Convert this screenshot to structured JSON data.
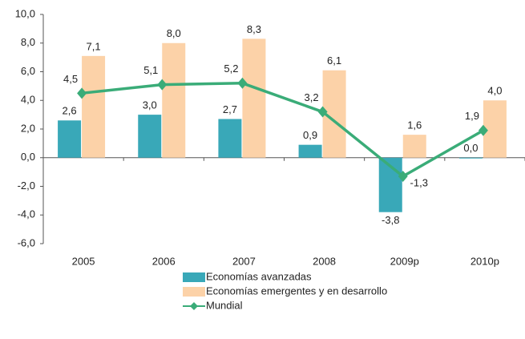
{
  "chart_data": {
    "type": "bar",
    "categories": [
      "2005",
      "2006",
      "2007",
      "2008",
      "2009p",
      "2010p"
    ],
    "series": [
      {
        "name": "Economías avanzadas",
        "type": "bar",
        "color": "#39a8b8",
        "values": [
          2.6,
          3.0,
          2.7,
          0.9,
          -3.8,
          0.0
        ],
        "value_labels": [
          "2,6",
          "3,0",
          "2,7",
          "0,9",
          "-3,8",
          "0,0"
        ]
      },
      {
        "name": "Economías emergentes y en desarrollo",
        "type": "bar",
        "color": "#fcd2a8",
        "values": [
          7.1,
          8.0,
          8.3,
          6.1,
          1.6,
          4.0
        ],
        "value_labels": [
          "7,1",
          "8,0",
          "8,3",
          "6,1",
          "1,6",
          "4,0"
        ]
      },
      {
        "name": "Mundial",
        "type": "line",
        "color": "#3aac78",
        "values": [
          4.5,
          5.1,
          5.2,
          3.2,
          -1.3,
          1.9
        ],
        "value_labels": [
          "4,5",
          "5,1",
          "5,2",
          "3,2",
          "-1,3",
          "1,9"
        ]
      }
    ],
    "ylim": [
      -6,
      10
    ],
    "yticks": [
      {
        "value": -6,
        "label": "-6,0"
      },
      {
        "value": -4,
        "label": "-4,0"
      },
      {
        "value": -2,
        "label": "-2,0"
      },
      {
        "value": 0,
        "label": "0,0"
      },
      {
        "value": 2,
        "label": "2,0"
      },
      {
        "value": 4,
        "label": "4,0"
      },
      {
        "value": 6,
        "label": "6,0"
      },
      {
        "value": 8,
        "label": "8,0"
      },
      {
        "value": 10,
        "label": "10,0"
      }
    ]
  }
}
